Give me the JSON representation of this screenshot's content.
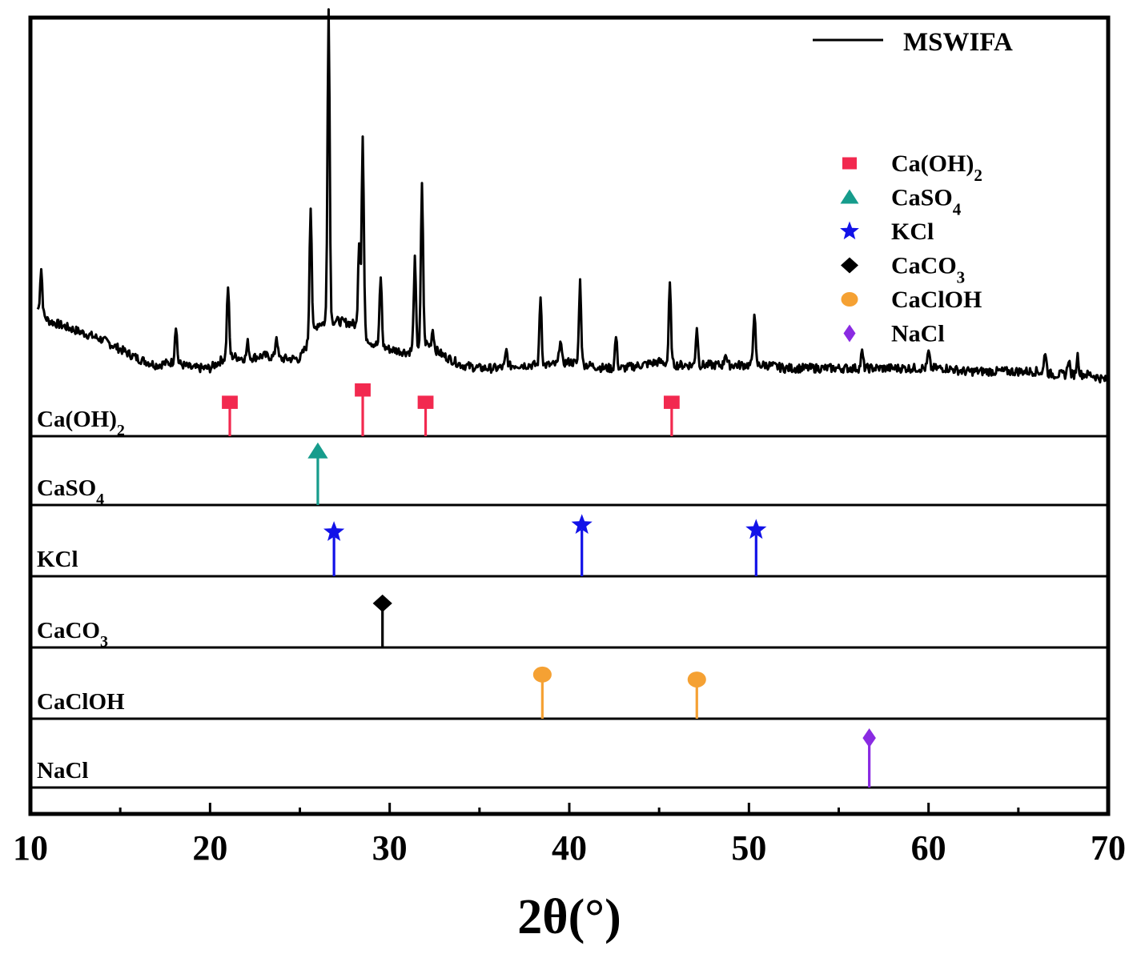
{
  "chart_data": {
    "type": "line",
    "title": "",
    "xlabel": "2θ(°)",
    "ylabel": "",
    "xlim": [
      10,
      70
    ],
    "xticks": [
      "10",
      "20",
      "30",
      "40",
      "50",
      "60",
      "70"
    ],
    "pattern": {
      "name": "MSWIFA",
      "color": "#000000",
      "baseline": [
        [
          10,
          0.23
        ],
        [
          11,
          0.17
        ],
        [
          12,
          0.15
        ],
        [
          13,
          0.13
        ],
        [
          14,
          0.11
        ],
        [
          15,
          0.08
        ],
        [
          16,
          0.05
        ],
        [
          17,
          0.03
        ],
        [
          18,
          0.04
        ],
        [
          19,
          0.02
        ],
        [
          20,
          0.02
        ],
        [
          21,
          0.06
        ],
        [
          22,
          0.05
        ],
        [
          23,
          0.06
        ],
        [
          24,
          0.05
        ],
        [
          25,
          0.05
        ],
        [
          26,
          0.16
        ],
        [
          27,
          0.17
        ],
        [
          28,
          0.16
        ],
        [
          29,
          0.1
        ],
        [
          30,
          0.08
        ],
        [
          31,
          0.07
        ],
        [
          32,
          0.1
        ],
        [
          33,
          0.06
        ],
        [
          34,
          0.03
        ],
        [
          35,
          0.02
        ],
        [
          36,
          0.02
        ],
        [
          37,
          0.03
        ],
        [
          38,
          0.03
        ],
        [
          39,
          0.03
        ],
        [
          40,
          0.04
        ],
        [
          41,
          0.03
        ],
        [
          42,
          0.02
        ],
        [
          43,
          0.02
        ],
        [
          44,
          0.03
        ],
        [
          45,
          0.04
        ],
        [
          46,
          0.03
        ],
        [
          47,
          0.03
        ],
        [
          48,
          0.03
        ],
        [
          49,
          0.03
        ],
        [
          50,
          0.03
        ],
        [
          51,
          0.03
        ],
        [
          52,
          0.02
        ],
        [
          53,
          0.02
        ],
        [
          54,
          0.02
        ],
        [
          55,
          0.02
        ],
        [
          56,
          0.02
        ],
        [
          57,
          0.02
        ],
        [
          58,
          0.02
        ],
        [
          59,
          0.02
        ],
        [
          60,
          0.02
        ],
        [
          61,
          0.02
        ],
        [
          62,
          0.01
        ],
        [
          63,
          0.01
        ],
        [
          64,
          0.01
        ],
        [
          65,
          0.01
        ],
        [
          66,
          0.01
        ],
        [
          67,
          0.0
        ],
        [
          68,
          0.0
        ],
        [
          69,
          0.0
        ],
        [
          70,
          -0.02
        ]
      ],
      "peaks": [
        [
          10.6,
          0.14
        ],
        [
          18.1,
          0.12
        ],
        [
          21.0,
          0.22
        ],
        [
          22.1,
          0.05
        ],
        [
          23.7,
          0.07
        ],
        [
          25.6,
          0.42
        ],
        [
          26.6,
          1.0
        ],
        [
          28.3,
          0.28
        ],
        [
          28.5,
          0.62
        ],
        [
          29.5,
          0.22
        ],
        [
          31.4,
          0.28
        ],
        [
          31.8,
          0.5
        ],
        [
          32.4,
          0.06
        ],
        [
          36.5,
          0.05
        ],
        [
          38.4,
          0.22
        ],
        [
          39.5,
          0.08
        ],
        [
          40.6,
          0.26
        ],
        [
          42.6,
          0.1
        ],
        [
          45.6,
          0.25
        ],
        [
          47.1,
          0.12
        ],
        [
          48.7,
          0.04
        ],
        [
          50.3,
          0.17
        ],
        [
          56.3,
          0.05
        ],
        [
          60.0,
          0.05
        ],
        [
          66.5,
          0.07
        ],
        [
          67.8,
          0.05
        ],
        [
          68.3,
          0.06
        ]
      ]
    },
    "legend": {
      "position": "top-right",
      "line_entry": "MSWIFA",
      "markers": [
        {
          "name": "Ca(OH)",
          "sub": "2",
          "marker": "square",
          "color": "#f2294f"
        },
        {
          "name": "CaSO",
          "sub": "4",
          "marker": "triangle",
          "color": "#169c8c"
        },
        {
          "name": "KCl",
          "sub": "",
          "marker": "star",
          "color": "#1212e8"
        },
        {
          "name": "CaCO",
          "sub": "3",
          "marker": "diamond",
          "color": "#000000"
        },
        {
          "name": "CaClOH",
          "sub": "",
          "marker": "circle",
          "color": "#f5a133"
        },
        {
          "name": "NaCl",
          "sub": "",
          "marker": "thin-diamond",
          "color": "#8a2be2"
        }
      ]
    },
    "reference_panels": [
      {
        "name": "Ca(OH)",
        "sub": "2",
        "marker": "square",
        "color": "#f2294f",
        "positions": [
          21.1,
          28.5,
          32.0,
          45.7
        ],
        "heights": [
          0.55,
          0.75,
          0.55,
          0.55
        ]
      },
      {
        "name": "CaSO",
        "sub": "4",
        "marker": "triangle",
        "color": "#169c8c",
        "positions": [
          26.0
        ],
        "heights": [
          0.78
        ]
      },
      {
        "name": "KCl",
        "sub": "",
        "marker": "star",
        "color": "#1212e8",
        "positions": [
          26.9,
          40.7,
          50.4
        ],
        "heights": [
          0.62,
          0.72,
          0.65
        ]
      },
      {
        "name": "CaCO",
        "sub": "3",
        "marker": "diamond",
        "color": "#000000",
        "positions": [
          29.6
        ],
        "heights": [
          0.62
        ]
      },
      {
        "name": "CaClOH",
        "sub": "",
        "marker": "circle",
        "color": "#f5a133",
        "positions": [
          38.5,
          47.1
        ],
        "heights": [
          0.62,
          0.55
        ]
      },
      {
        "name": "NaCl",
        "sub": "",
        "marker": "thin-diamond",
        "color": "#8a2be2",
        "positions": [
          56.7
        ],
        "heights": [
          0.72
        ]
      }
    ]
  }
}
